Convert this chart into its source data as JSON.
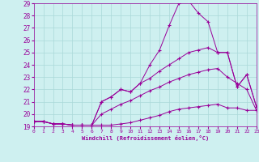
{
  "xlabel": "Windchill (Refroidissement éolien,°C)",
  "background_color": "#cef0f0",
  "grid_color": "#aad8d8",
  "line_color": "#990099",
  "xlim": [
    0,
    23
  ],
  "ylim": [
    19,
    29
  ],
  "xticks": [
    0,
    1,
    2,
    3,
    4,
    5,
    6,
    7,
    8,
    9,
    10,
    11,
    12,
    13,
    14,
    15,
    16,
    17,
    18,
    19,
    20,
    21,
    22,
    23
  ],
  "yticks": [
    19,
    20,
    21,
    22,
    23,
    24,
    25,
    26,
    27,
    28,
    29
  ],
  "series": [
    [
      19.4,
      19.4,
      19.2,
      19.2,
      19.1,
      19.1,
      19.1,
      19.1,
      19.1,
      19.2,
      19.3,
      19.5,
      19.7,
      19.9,
      20.2,
      20.4,
      20.5,
      20.6,
      20.7,
      20.8,
      20.5,
      20.5,
      20.3,
      20.3
    ],
    [
      19.4,
      19.4,
      19.2,
      19.2,
      19.1,
      19.1,
      19.1,
      20.0,
      20.4,
      20.8,
      21.1,
      21.5,
      21.9,
      22.2,
      22.6,
      22.9,
      23.2,
      23.4,
      23.6,
      23.7,
      23.0,
      22.5,
      22.0,
      20.3
    ],
    [
      19.4,
      19.4,
      19.2,
      19.2,
      19.1,
      19.1,
      19.1,
      21.0,
      21.4,
      22.0,
      21.8,
      22.5,
      22.9,
      23.5,
      24.0,
      24.5,
      25.0,
      25.2,
      25.4,
      25.0,
      25.0,
      22.2,
      23.2,
      20.6
    ],
    [
      19.4,
      19.4,
      19.2,
      19.2,
      19.1,
      19.1,
      19.1,
      21.0,
      21.4,
      22.0,
      21.8,
      22.5,
      24.0,
      25.2,
      27.2,
      29.0,
      29.2,
      28.2,
      27.5,
      25.0,
      25.0,
      22.2,
      23.2,
      20.6
    ]
  ]
}
